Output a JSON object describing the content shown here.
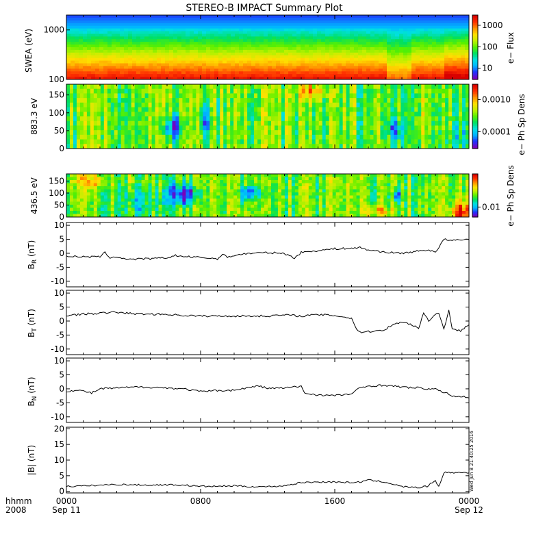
{
  "title": "STEREO-B IMPACT Summary Plot",
  "timestamp_text": "Wed Jun  8 21:40:25 2016",
  "x_axis": {
    "corner_labels": [
      "hhmm",
      "2008"
    ],
    "ticks": [
      {
        "time": "0000",
        "date": "Sep 11",
        "hour": 0
      },
      {
        "time": "0800",
        "date": "",
        "hour": 8
      },
      {
        "time": "1600",
        "date": "",
        "hour": 16
      },
      {
        "time": "0000",
        "date": "Sep 12",
        "hour": 24
      }
    ],
    "minor_tick_hours": 1,
    "range_hours": [
      0,
      24
    ]
  },
  "colors": {
    "colormap": [
      "#7a00b8",
      "#2030ff",
      "#00b4ff",
      "#00e0e0",
      "#00e060",
      "#58f000",
      "#c0f000",
      "#ffe000",
      "#ff9000",
      "#ff3000",
      "#d80000"
    ],
    "trace": "#000000"
  },
  "chart_data": [
    {
      "type": "heatmap",
      "ylabel": "SWEA (eV)",
      "y_scale": "log",
      "y_ticks": [
        "1000",
        "100"
      ],
      "ylim": [
        100,
        2000
      ],
      "colorbar": {
        "label": "e− Flux",
        "scale": "log",
        "ticks": [
          "1000",
          "100",
          "10"
        ],
        "range": [
          3,
          3000
        ]
      }
    },
    {
      "type": "heatmap",
      "ylabel": "883.3 eV",
      "y_ticks": [
        "150",
        "100",
        "50",
        "0"
      ],
      "ylim": [
        0,
        180
      ],
      "colorbar": {
        "label": "e− Ph Sp Dens",
        "scale": "log",
        "ticks": [
          "0.0010",
          "0.0001"
        ],
        "range": [
          3e-05,
          0.003
        ]
      }
    },
    {
      "type": "heatmap",
      "ylabel": "436.5 eV",
      "y_ticks": [
        "150",
        "100",
        "50",
        "0"
      ],
      "ylim": [
        0,
        180
      ],
      "colorbar": {
        "label": "e− Ph Sp Dens",
        "scale": "log",
        "ticks": [
          "0.01"
        ],
        "range": [
          0.005,
          0.1
        ]
      }
    },
    {
      "type": "line",
      "ylabel": "B_R (nT)",
      "ylim": [
        -12,
        11
      ],
      "y_ticks": [
        10,
        5,
        0,
        -5,
        -10
      ],
      "x": [
        0,
        1,
        1.5,
        2,
        2.3,
        2.6,
        3,
        3.5,
        4,
        4.5,
        5,
        6,
        6.5,
        7,
        8,
        8.5,
        9,
        9.3,
        9.6,
        10,
        10.5,
        11,
        12,
        13,
        13.3,
        13.6,
        14,
        15,
        16,
        17,
        17.5,
        18,
        19,
        20,
        21,
        21.5,
        22,
        22.2,
        22.5,
        23,
        24
      ],
      "values": [
        -1,
        -1.3,
        -1.3,
        -1.2,
        0.2,
        -1.5,
        -1.3,
        -2,
        -2.2,
        -2,
        -2,
        -1.6,
        -0.8,
        -1.2,
        -1.5,
        -1.7,
        -2,
        -0.5,
        -1.3,
        -0.8,
        -0.3,
        0,
        0.2,
        0,
        -1,
        -1.6,
        0.3,
        1,
        1.6,
        1.8,
        2,
        1.2,
        0.4,
        0,
        0.8,
        1.2,
        0.6,
        2,
        5,
        4.5,
        5
      ]
    },
    {
      "type": "line",
      "ylabel": "B_T (nT)",
      "ylim": [
        -12,
        11
      ],
      "y_ticks": [
        10,
        5,
        0,
        -5,
        -10
      ],
      "x": [
        0,
        1,
        2,
        3,
        4,
        5,
        6,
        7,
        8,
        9,
        10,
        11,
        12,
        13,
        14,
        15,
        16,
        17,
        17.3,
        17.6,
        18,
        18.5,
        19,
        19.5,
        20,
        20.5,
        21,
        21.3,
        21.6,
        21.9,
        22.2,
        22.5,
        22.8,
        23,
        23.5,
        24
      ],
      "values": [
        2,
        2.5,
        2.8,
        3.2,
        2.6,
        2.5,
        2.4,
        2,
        1.8,
        1.8,
        1.8,
        1.8,
        1.8,
        2.2,
        1.8,
        2.3,
        2,
        1,
        -3,
        -4,
        -3.8,
        -3.5,
        -3,
        -1,
        -0.5,
        -1,
        -2.5,
        3,
        0,
        2,
        3,
        -3,
        4,
        -3,
        -3.5,
        -1
      ]
    },
    {
      "type": "line",
      "ylabel": "B_N (nT)",
      "ylim": [
        -12,
        11
      ],
      "y_ticks": [
        10,
        5,
        0,
        -5,
        -10
      ],
      "x": [
        0,
        0.5,
        1,
        1.5,
        2,
        3,
        4,
        5,
        6,
        7,
        8,
        9,
        10,
        11,
        11.5,
        12,
        13,
        14,
        14.2,
        15,
        16,
        17,
        17.5,
        18,
        19,
        20,
        21,
        22,
        22.5,
        23,
        24
      ],
      "values": [
        -1,
        -0.5,
        -0.8,
        -1.5,
        0,
        0.3,
        0.6,
        0.6,
        0.3,
        0,
        -1,
        -0.6,
        -0.5,
        0.6,
        1,
        0.2,
        0.3,
        0.9,
        -1.5,
        -2.2,
        -2.4,
        -1.8,
        0.3,
        1,
        1.3,
        0.6,
        0.3,
        -0.2,
        -1.2,
        -2.5,
        -3
      ]
    },
    {
      "type": "line",
      "ylabel": "|B| (nT)",
      "ylim": [
        -0.5,
        20.5
      ],
      "y_ticks": [
        20,
        15,
        10,
        5,
        0
      ],
      "x": [
        0,
        1,
        2,
        3,
        4,
        5,
        6,
        7,
        8,
        9,
        10,
        11,
        12,
        13,
        14,
        15,
        16,
        17,
        17.5,
        18,
        19,
        20,
        21,
        21.5,
        22,
        22.2,
        22.5,
        23,
        24
      ],
      "values": [
        1.6,
        1.7,
        2,
        2.2,
        2.1,
        2,
        2.1,
        2,
        1.6,
        1.6,
        1.8,
        1.5,
        1.5,
        1.8,
        2.8,
        3,
        3,
        2.8,
        3,
        3.6,
        3,
        1.5,
        1.2,
        1.6,
        3.5,
        1.5,
        6,
        6,
        6
      ]
    }
  ]
}
